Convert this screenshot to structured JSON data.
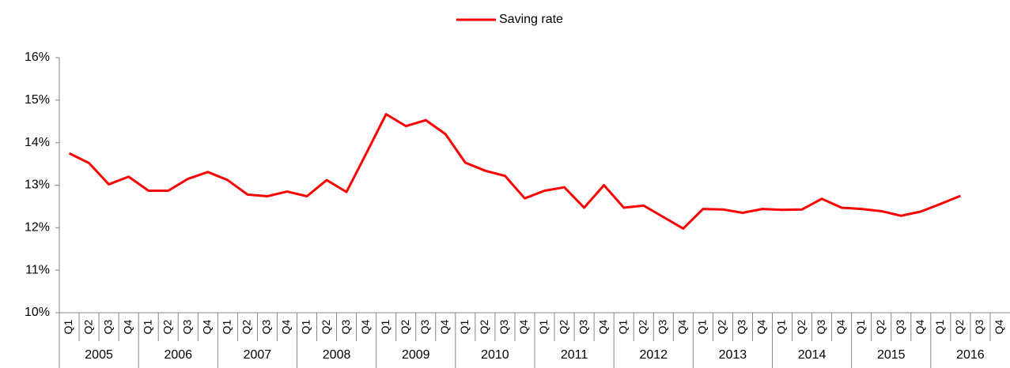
{
  "chart_data": {
    "type": "line",
    "categories": [
      "Q1",
      "Q2",
      "Q3",
      "Q4",
      "Q1",
      "Q2",
      "Q3",
      "Q4",
      "Q1",
      "Q2",
      "Q3",
      "Q4",
      "Q1",
      "Q2",
      "Q3",
      "Q4",
      "Q1",
      "Q2",
      "Q3",
      "Q4",
      "Q1",
      "Q2",
      "Q3",
      "Q4",
      "Q1",
      "Q2",
      "Q3",
      "Q4",
      "Q1",
      "Q2",
      "Q3",
      "Q4",
      "Q1",
      "Q2",
      "Q3",
      "Q4",
      "Q1",
      "Q2",
      "Q3",
      "Q4",
      "Q1",
      "Q2",
      "Q3",
      "Q4",
      "Q1",
      "Q2",
      "Q3",
      "Q4"
    ],
    "groups": [
      "2005",
      "2006",
      "2007",
      "2008",
      "2009",
      "2010",
      "2011",
      "2012",
      "2013",
      "2014",
      "2015",
      "2016"
    ],
    "series": [
      {
        "name": "Saving rate",
        "color": "#ff0000",
        "values": [
          13.75,
          13.52,
          13.02,
          13.2,
          12.87,
          12.87,
          13.15,
          13.31,
          13.12,
          12.78,
          12.74,
          12.85,
          12.74,
          13.12,
          12.84,
          13.75,
          14.67,
          14.39,
          14.53,
          14.2,
          13.53,
          13.34,
          13.22,
          12.69,
          12.87,
          12.95,
          12.47,
          13.0,
          12.47,
          12.52,
          12.25,
          11.98,
          12.44,
          12.43,
          12.35,
          12.44,
          12.42,
          12.43,
          12.68,
          12.47,
          12.44,
          12.39,
          12.28,
          12.38,
          12.56,
          12.75,
          null,
          null
        ]
      }
    ],
    "ylim": [
      10,
      16
    ],
    "yticks": [
      {
        "value": 10,
        "label": "10%"
      },
      {
        "value": 11,
        "label": "11%"
      },
      {
        "value": 12,
        "label": "12%"
      },
      {
        "value": 13,
        "label": "13%"
      },
      {
        "value": 14,
        "label": "14%"
      },
      {
        "value": 15,
        "label": "15%"
      },
      {
        "value": 16,
        "label": "16%"
      }
    ],
    "grid": false,
    "legend": "top"
  }
}
